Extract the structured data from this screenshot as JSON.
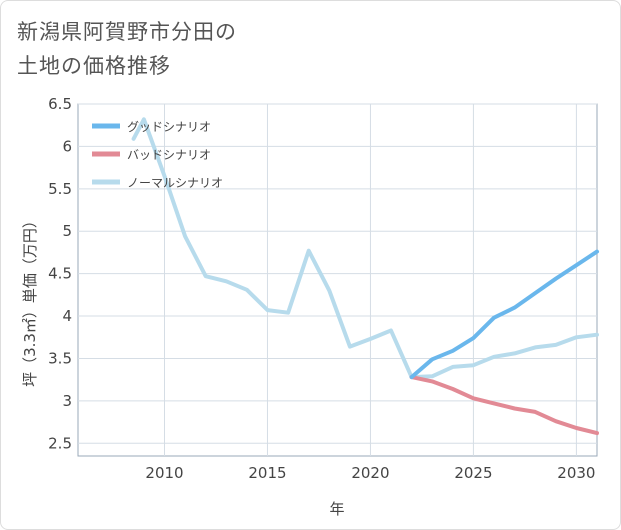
{
  "title": {
    "line1": "新潟県阿賀野市分田の",
    "line2": "土地の価格推移"
  },
  "chart_data": {
    "type": "line",
    "title": "新潟県阿賀野市分田の土地の価格推移",
    "xlabel": "年",
    "ylabel": "坪（3.3㎡）単価（万円）",
    "xlim": [
      2005.8,
      2031
    ],
    "ylim": [
      2.35,
      6.5
    ],
    "xticks": [
      2010,
      2015,
      2020,
      2025,
      2030
    ],
    "xtick_labels": [
      "2010",
      "2015",
      "2020",
      "2025",
      "2030"
    ],
    "yticks": [
      2.5,
      3,
      3.5,
      4,
      4.5,
      5,
      5.5,
      6,
      6.5
    ],
    "ytick_labels": [
      "2.5",
      "3",
      "3.5",
      "4",
      "4.5",
      "5",
      "5.5",
      "6",
      "6.5"
    ],
    "legend_position": "top-left",
    "grid": true,
    "series": [
      {
        "name": "グッドシナリオ",
        "color": "#6ab7ec",
        "x": [
          2022,
          2023,
          2024,
          2025,
          2026,
          2027,
          2028,
          2029,
          2030,
          2031
        ],
        "y": [
          3.28,
          3.49,
          3.59,
          3.74,
          3.98,
          4.1,
          4.27,
          4.44,
          4.6,
          4.76
        ]
      },
      {
        "name": "バッドシナリオ",
        "color": "#e28a95",
        "x": [
          2022,
          2023,
          2024,
          2025,
          2026,
          2027,
          2028,
          2029,
          2030,
          2031
        ],
        "y": [
          3.28,
          3.23,
          3.14,
          3.03,
          2.97,
          2.91,
          2.87,
          2.76,
          2.68,
          2.62
        ]
      },
      {
        "name": "ノーマルシナリオ",
        "color": "#b7dbec",
        "x": [
          2008.5,
          2009,
          2010,
          2011,
          2012,
          2013,
          2014,
          2015,
          2016,
          2017,
          2018,
          2019,
          2020,
          2021,
          2022,
          2023,
          2024,
          2025,
          2026,
          2027,
          2028,
          2029,
          2030,
          2031
        ],
        "y": [
          6.09,
          6.32,
          5.65,
          4.94,
          4.47,
          4.41,
          4.31,
          4.07,
          4.04,
          4.77,
          4.3,
          3.64,
          3.73,
          3.83,
          3.28,
          3.29,
          3.4,
          3.42,
          3.52,
          3.56,
          3.63,
          3.66,
          3.75,
          3.78
        ]
      }
    ]
  }
}
